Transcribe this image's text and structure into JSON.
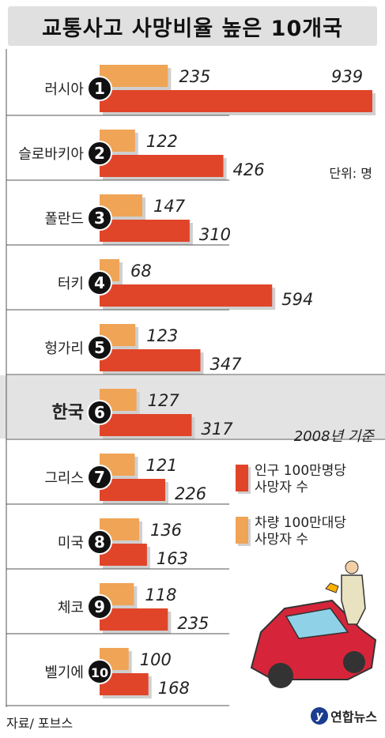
{
  "title": "교통사고 사망비율 높은 10개국",
  "unit": "단위: 명",
  "basis": "2008년 기준",
  "source": "자료/ 포브스",
  "logo": "연합뉴스",
  "highlight_country": "한국",
  "legend": [
    {
      "label": "인구 100만명당\n사망자 수",
      "color": "#e0452a"
    },
    {
      "label": "차량 100만대당\n사망자 수",
      "color": "#f0a456"
    }
  ],
  "chart_data": {
    "type": "bar",
    "title": "교통사고 사망비율 높은 10개국",
    "categories": [
      "러시아",
      "슬로바키아",
      "폴란드",
      "터키",
      "헝가리",
      "한국",
      "그리스",
      "미국",
      "체코",
      "벨기에"
    ],
    "ranks": [
      "1",
      "2",
      "3",
      "4",
      "5",
      "6",
      "7",
      "8",
      "9",
      "10"
    ],
    "series": [
      {
        "name": "차량 100만대당 사망자 수",
        "values": [
          235,
          122,
          147,
          68,
          123,
          127,
          121,
          136,
          118,
          100
        ]
      },
      {
        "name": "인구 100만명당 사망자 수",
        "values": [
          939,
          426,
          310,
          594,
          347,
          317,
          226,
          163,
          235,
          168
        ]
      }
    ],
    "colors": {
      "vehicle": "#f0a456",
      "population": "#e0452a",
      "shadow": "#cfcfcf",
      "highlight_bg": "#e3e3e3"
    }
  }
}
